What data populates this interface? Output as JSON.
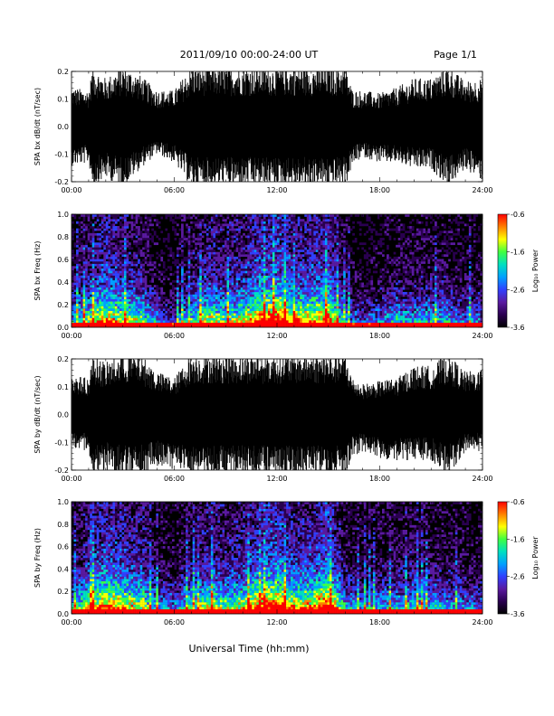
{
  "header": {
    "title": "2011/09/10  00:00-24:00 UT",
    "page": "Page 1/1"
  },
  "footer": {
    "xlabel": "Universal Time (hh:mm)"
  },
  "colors": {
    "background": "#ffffff",
    "trace": "#000000",
    "spectrogram_low": "#000000",
    "colormap": [
      "#000000",
      "#2a0050",
      "#5a1aa0",
      "#3040ff",
      "#00a0ff",
      "#00e0c0",
      "#40ff40",
      "#ffff00",
      "#ff8000",
      "#ff0000"
    ]
  },
  "chart_data": [
    {
      "type": "line",
      "id": "bx_timeseries",
      "ylabel": "SPA bx dB/dt (nT/sec)",
      "xlabel": "",
      "xlim": [
        0,
        24
      ],
      "ylim": [
        -0.2,
        0.2
      ],
      "x_ticks": [
        "00:00",
        "06:00",
        "12:00",
        "18:00",
        "24:00"
      ],
      "y_ticks": [
        "-0.2",
        "-0.1",
        "0.0",
        "0.1",
        "0.2"
      ],
      "series": [
        {
          "x": [
            0,
            1,
            1.25,
            2,
            3,
            4,
            5,
            6,
            7,
            8,
            9,
            10,
            11,
            12,
            13,
            14,
            15,
            16,
            16.4,
            17,
            18,
            19,
            20,
            21,
            22,
            23,
            24
          ],
          "envelope_upper": [
            0.13,
            0.12,
            0.2,
            0.16,
            0.2,
            0.17,
            0.12,
            0.12,
            0.2,
            0.2,
            0.2,
            0.2,
            0.2,
            0.2,
            0.2,
            0.2,
            0.2,
            0.2,
            0.12,
            0.12,
            0.11,
            0.13,
            0.16,
            0.16,
            0.2,
            0.15,
            0.16
          ],
          "envelope_lower": [
            -0.13,
            -0.12,
            -0.2,
            -0.17,
            -0.2,
            -0.14,
            -0.09,
            -0.12,
            -0.2,
            -0.2,
            -0.2,
            -0.2,
            -0.2,
            -0.2,
            -0.2,
            -0.2,
            -0.2,
            -0.2,
            -0.13,
            -0.1,
            -0.12,
            -0.12,
            -0.14,
            -0.14,
            -0.2,
            -0.14,
            -0.18
          ]
        }
      ],
      "grid": false
    },
    {
      "type": "heatmap",
      "id": "bx_spectrogram",
      "ylabel": "SPA bx Freq (Hz)",
      "xlabel": "",
      "xlim": [
        0,
        24
      ],
      "ylim": [
        0.0,
        1.0
      ],
      "x_ticks": [
        "00:00",
        "06:00",
        "12:00",
        "18:00",
        "24:00"
      ],
      "y_ticks": [
        "0.0",
        "0.2",
        "0.4",
        "0.6",
        "0.8",
        "1.0"
      ],
      "colorbar": {
        "label": "Log₁₀ Power",
        "range": [
          -3.6,
          -0.6
        ],
        "ticks": [
          "-0.6",
          "-1.6",
          "-2.6",
          "-3.6"
        ]
      },
      "activity_hours": [
        0,
        1,
        2,
        3,
        4,
        5,
        6,
        7,
        8,
        9,
        10,
        11,
        12,
        13,
        14,
        15,
        16,
        17,
        18,
        19,
        20,
        21,
        22,
        23
      ],
      "activity_level": [
        0.35,
        0.45,
        0.55,
        0.5,
        0.45,
        0.3,
        0.25,
        0.4,
        0.5,
        0.45,
        0.5,
        0.6,
        0.65,
        0.55,
        0.55,
        0.6,
        0.3,
        0.25,
        0.3,
        0.35,
        0.35,
        0.35,
        0.35,
        0.3
      ]
    },
    {
      "type": "line",
      "id": "by_timeseries",
      "ylabel": "SPA by dB/dt (nT/sec)",
      "xlabel": "",
      "xlim": [
        0,
        24
      ],
      "ylim": [
        -0.2,
        0.2
      ],
      "x_ticks": [
        "00:00",
        "06:00",
        "12:00",
        "18:00",
        "24:00"
      ],
      "y_ticks": [
        "-0.2",
        "-0.1",
        "0.0",
        "0.1",
        "0.2"
      ],
      "series": [
        {
          "x": [
            0,
            1,
            1.25,
            2,
            3,
            4,
            5,
            6,
            7,
            8,
            9,
            10,
            11,
            12,
            13,
            14,
            15,
            16,
            16.4,
            17,
            18,
            19,
            20,
            21,
            22,
            23,
            24
          ],
          "envelope_upper": [
            0.13,
            0.12,
            0.2,
            0.17,
            0.2,
            0.2,
            0.14,
            0.12,
            0.2,
            0.2,
            0.2,
            0.2,
            0.2,
            0.2,
            0.2,
            0.2,
            0.2,
            0.2,
            0.12,
            0.1,
            0.11,
            0.12,
            0.16,
            0.16,
            0.2,
            0.14,
            0.15
          ],
          "envelope_lower": [
            -0.12,
            -0.12,
            -0.2,
            -0.18,
            -0.2,
            -0.2,
            -0.17,
            -0.18,
            -0.2,
            -0.2,
            -0.2,
            -0.2,
            -0.2,
            -0.2,
            -0.2,
            -0.2,
            -0.2,
            -0.2,
            -0.14,
            -0.12,
            -0.15,
            -0.15,
            -0.15,
            -0.15,
            -0.2,
            -0.12,
            -0.12
          ]
        }
      ],
      "grid": false
    },
    {
      "type": "heatmap",
      "id": "by_spectrogram",
      "ylabel": "SPA by Freq (Hz)",
      "xlabel": "",
      "xlim": [
        0,
        24
      ],
      "ylim": [
        0.0,
        1.0
      ],
      "x_ticks": [
        "00:00",
        "06:00",
        "12:00",
        "18:00",
        "24:00"
      ],
      "y_ticks": [
        "0.0",
        "0.2",
        "0.4",
        "0.6",
        "0.8",
        "1.0"
      ],
      "colorbar": {
        "label": "Log₁₀ Power",
        "range": [
          -3.6,
          -0.6
        ],
        "ticks": [
          "-0.6",
          "-1.6",
          "-2.6",
          "-3.6"
        ]
      },
      "activity_hours": [
        0,
        1,
        2,
        3,
        4,
        5,
        6,
        7,
        8,
        9,
        10,
        11,
        12,
        13,
        14,
        15,
        16,
        17,
        18,
        19,
        20,
        21,
        22,
        23
      ],
      "activity_level": [
        0.35,
        0.5,
        0.6,
        0.55,
        0.5,
        0.35,
        0.3,
        0.4,
        0.5,
        0.45,
        0.5,
        0.6,
        0.65,
        0.55,
        0.55,
        0.65,
        0.35,
        0.3,
        0.35,
        0.35,
        0.4,
        0.35,
        0.35,
        0.3
      ]
    }
  ]
}
